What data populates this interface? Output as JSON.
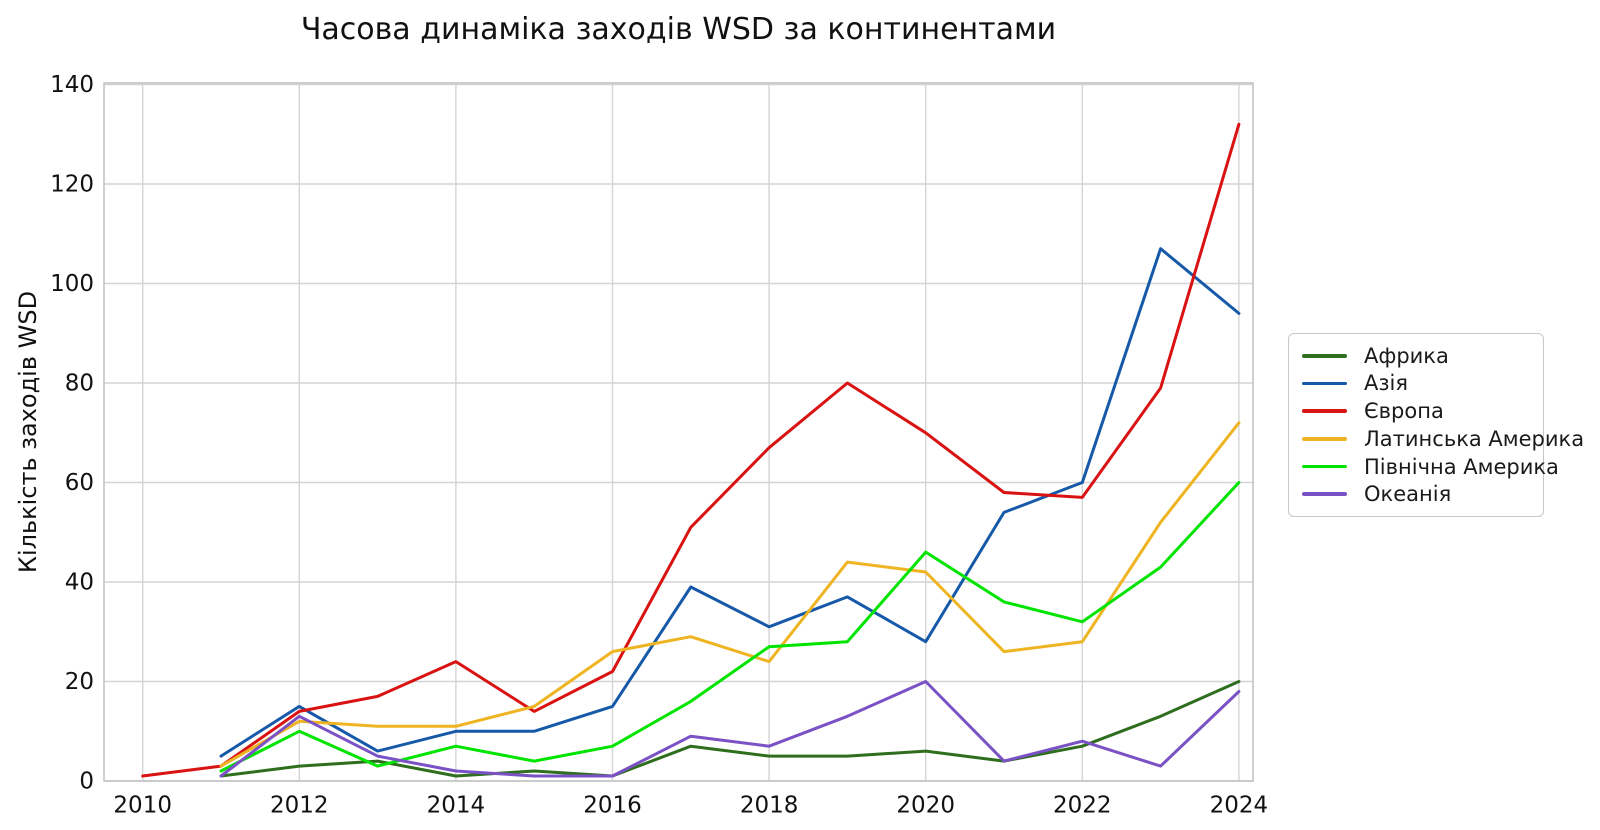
{
  "title": "Часова динаміка заходів WSD за континентами",
  "axes": {
    "y_label": "Кількість заходів WSD",
    "x_label": "",
    "y_ticks": [
      0,
      20,
      40,
      60,
      80,
      100,
      120,
      140
    ],
    "x_ticks": [
      2010,
      2012,
      2014,
      2016,
      2018,
      2020,
      2022,
      2024
    ]
  },
  "chart_data": {
    "type": "line",
    "title": "Часова динаміка заходів WSD за континентами",
    "xlabel": "",
    "ylabel": "Кількість заходів WSD",
    "grid": true,
    "legend_position": "right",
    "xlim": [
      2009.5,
      2024.2
    ],
    "ylim": [
      0,
      140
    ],
    "x": [
      2010,
      2011,
      2012,
      2013,
      2014,
      2015,
      2016,
      2017,
      2018,
      2019,
      2020,
      2021,
      2022,
      2023,
      2024
    ],
    "series": [
      {
        "name": "Африка",
        "color": "#2e6e1e",
        "values": [
          null,
          1,
          3,
          4,
          1,
          2,
          1,
          7,
          5,
          5,
          6,
          4,
          7,
          13,
          20
        ]
      },
      {
        "name": "Азія",
        "color": "#1659a8",
        "values": [
          null,
          5,
          15,
          6,
          10,
          10,
          15,
          39,
          31,
          37,
          28,
          54,
          60,
          107,
          94
        ]
      },
      {
        "name": "Європа",
        "color": "#d91212",
        "values": [
          1,
          3,
          14,
          17,
          24,
          14,
          22,
          51,
          67,
          80,
          70,
          58,
          57,
          79,
          132
        ]
      },
      {
        "name": "Латинська Америка",
        "color": "#eeb422",
        "values": [
          null,
          3,
          12,
          11,
          11,
          15,
          26,
          29,
          24,
          44,
          42,
          26,
          28,
          52,
          72
        ]
      },
      {
        "name": "Північна Америка",
        "color": "#00e400",
        "values": [
          null,
          2,
          10,
          3,
          7,
          4,
          7,
          16,
          27,
          28,
          46,
          36,
          32,
          43,
          60
        ]
      },
      {
        "name": "Океанія",
        "color": "#7a52c5",
        "values": [
          null,
          1,
          13,
          5,
          2,
          1,
          1,
          9,
          7,
          13,
          20,
          4,
          8,
          3,
          18
        ]
      }
    ],
    "style": {
      "grid_color": "#d4d4d4",
      "frame_color": "#c4c4c4",
      "background": "#ffffff",
      "line_width": 3
    }
  }
}
